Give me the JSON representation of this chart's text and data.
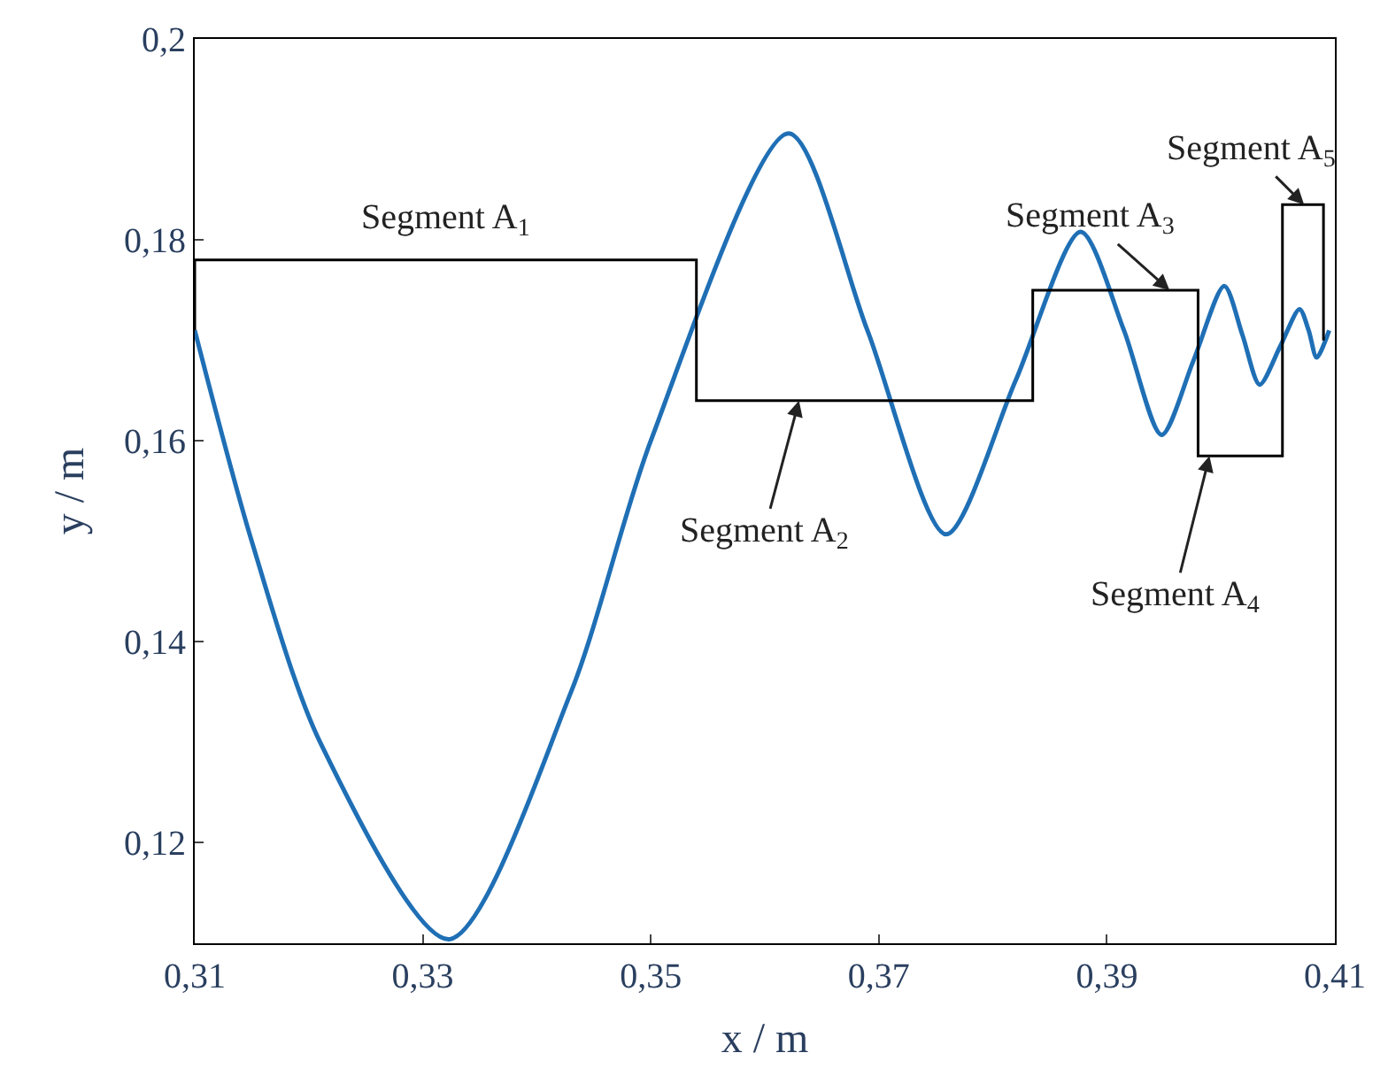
{
  "chart_data": {
    "type": "line",
    "xlabel": "x / m",
    "ylabel": "y / m",
    "xlim": [
      0.31,
      0.41
    ],
    "ylim": [
      0.11,
      0.2
    ],
    "xticks": [
      {
        "value": 0.31,
        "label": "0,31"
      },
      {
        "value": 0.33,
        "label": "0,33"
      },
      {
        "value": 0.35,
        "label": "0,35"
      },
      {
        "value": 0.37,
        "label": "0,37"
      },
      {
        "value": 0.39,
        "label": "0,39"
      },
      {
        "value": 0.41,
        "label": "0,41"
      }
    ],
    "yticks": [
      {
        "value": 0.12,
        "label": "0,12"
      },
      {
        "value": 0.14,
        "label": "0,14"
      },
      {
        "value": 0.16,
        "label": "0,16"
      },
      {
        "value": 0.18,
        "label": "0,18"
      },
      {
        "value": 0.2,
        "label": "0,2"
      }
    ],
    "series": [
      {
        "color": "#1f6fb5",
        "x": [
          0.31,
          0.315,
          0.321,
          0.3323,
          0.343,
          0.35,
          0.3621,
          0.369,
          0.3759,
          0.382,
          0.3877,
          0.3915,
          0.3948,
          0.3976,
          0.4003,
          0.4019,
          0.4034,
          0.4052,
          0.4069,
          0.4077,
          0.4084,
          0.4095
        ],
        "values": [
          0.171,
          0.15,
          0.13,
          0.1104,
          0.135,
          0.16,
          0.1906,
          0.171,
          0.1507,
          0.166,
          0.1808,
          0.171,
          0.1606,
          0.168,
          0.1754,
          0.1705,
          0.1656,
          0.1694,
          0.1731,
          0.171,
          0.1683,
          0.171
        ]
      },
      {
        "type": "step",
        "color": "#000000",
        "x": [
          0.31,
          0.354,
          0.3835,
          0.398,
          0.4054,
          0.409,
          0.409
        ],
        "values": [
          0.171,
          0.178,
          0.164,
          0.175,
          0.1585,
          0.1835,
          0.17
        ]
      }
    ],
    "annotations": [
      {
        "text": "Segment A$_{1}$",
        "x": 0.332,
        "y": 0.178
      },
      {
        "text": "Segment A$_{2}$",
        "x": 0.363,
        "y": 0.164
      },
      {
        "text": "Segment A$_{3}$",
        "x": 0.3955,
        "y": 0.175
      },
      {
        "text": "Segment A$_{4}$",
        "x": 0.399,
        "y": 0.1585
      },
      {
        "text": "Segment A$_{5}$",
        "x": 0.4073,
        "y": 0.1835
      }
    ]
  }
}
